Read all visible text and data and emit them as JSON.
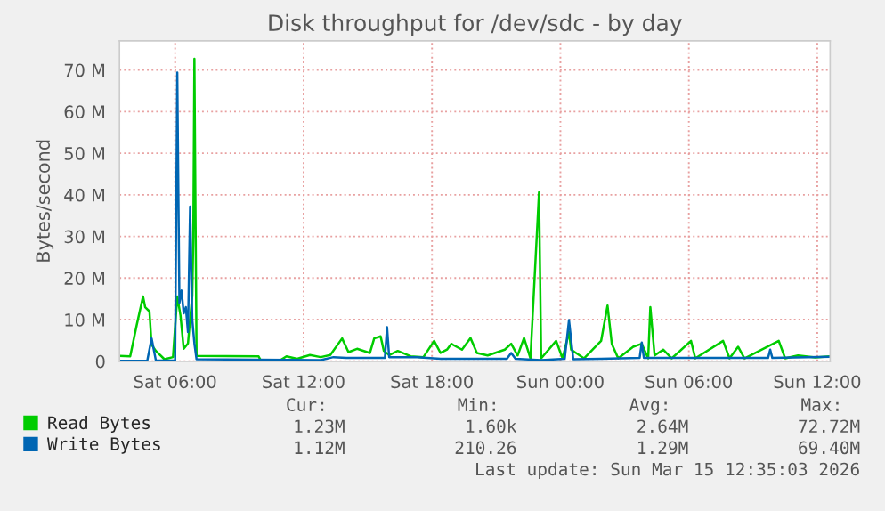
{
  "chart_data": {
    "type": "line",
    "title": "Disk throughput for /dev/sdc - by day",
    "ylabel": "Bytes/second",
    "xlim": [
      "2026-03-14T03:24",
      "2026-03-15T12:36"
    ],
    "xticks": [
      {
        "value": "2026-03-14T06:00",
        "label": "Sat 06:00"
      },
      {
        "value": "2026-03-14T12:00",
        "label": "Sat 12:00"
      },
      {
        "value": "2026-03-14T18:00",
        "label": "Sat 18:00"
      },
      {
        "value": "2026-03-15T00:00",
        "label": "Sun 00:00"
      },
      {
        "value": "2026-03-15T06:00",
        "label": "Sun 06:00"
      },
      {
        "value": "2026-03-15T12:00",
        "label": "Sun 12:00"
      }
    ],
    "ylim": [
      0,
      77
    ],
    "yticks": [
      {
        "value": 0,
        "label": "0"
      },
      {
        "value": 10,
        "label": "10 M"
      },
      {
        "value": 20,
        "label": "20 M"
      },
      {
        "value": 30,
        "label": "30 M"
      },
      {
        "value": 40,
        "label": "40 M"
      },
      {
        "value": 50,
        "label": "50 M"
      },
      {
        "value": 60,
        "label": "60 M"
      },
      {
        "value": 70,
        "label": "70 M"
      }
    ],
    "grid": true,
    "legend": "bottom",
    "marker": "none",
    "line_style": "solid",
    "series": [
      {
        "name": "Read Bytes",
        "color": "#00cc00",
        "x": [
          "2026-03-14T03:24",
          "2026-03-14T03:54",
          "2026-03-14T04:12",
          "2026-03-14T04:30",
          "2026-03-14T04:36",
          "2026-03-14T04:48",
          "2026-03-14T04:54",
          "2026-03-14T05:06",
          "2026-03-14T05:30",
          "2026-03-14T05:54",
          "2026-03-14T06:06",
          "2026-03-14T06:15",
          "2026-03-14T06:24",
          "2026-03-14T06:36",
          "2026-03-14T06:48",
          "2026-03-14T06:51",
          "2026-03-14T06:54",
          "2026-03-14T07:00",
          "2026-03-14T09:54",
          "2026-03-14T10:00",
          "2026-03-14T10:54",
          "2026-03-14T11:12",
          "2026-03-14T11:42",
          "2026-03-14T12:18",
          "2026-03-14T12:48",
          "2026-03-14T13:15",
          "2026-03-14T13:48",
          "2026-03-14T14:06",
          "2026-03-14T14:30",
          "2026-03-14T15:06",
          "2026-03-14T15:18",
          "2026-03-14T15:36",
          "2026-03-14T15:45",
          "2026-03-14T16:00",
          "2026-03-14T16:24",
          "2026-03-14T17:00",
          "2026-03-14T17:36",
          "2026-03-14T18:06",
          "2026-03-14T18:24",
          "2026-03-14T18:42",
          "2026-03-14T18:54",
          "2026-03-14T19:24",
          "2026-03-14T19:48",
          "2026-03-14T20:06",
          "2026-03-14T20:36",
          "2026-03-14T21:24",
          "2026-03-14T21:42",
          "2026-03-14T22:00",
          "2026-03-14T22:18",
          "2026-03-14T22:36",
          "2026-03-14T23:00",
          "2026-03-14T23:06",
          "2026-03-14T23:48",
          "2026-03-15T00:06",
          "2026-03-15T00:24",
          "2026-03-15T00:30",
          "2026-03-15T01:06",
          "2026-03-15T01:54",
          "2026-03-15T02:12",
          "2026-03-15T02:24",
          "2026-03-15T02:42",
          "2026-03-15T03:24",
          "2026-03-15T03:48",
          "2026-03-15T04:06",
          "2026-03-15T04:12",
          "2026-03-15T04:24",
          "2026-03-15T04:48",
          "2026-03-15T05:12",
          "2026-03-15T06:06",
          "2026-03-15T06:18",
          "2026-03-15T07:36",
          "2026-03-15T07:54",
          "2026-03-15T08:18",
          "2026-03-15T08:36",
          "2026-03-15T10:12",
          "2026-03-15T10:30",
          "2026-03-15T11:06",
          "2026-03-15T11:54",
          "2026-03-15T12:36"
        ],
        "values": [
          1.3,
          1.2,
          8.6,
          15.6,
          13,
          12,
          4,
          2.5,
          0.5,
          1,
          15.6,
          11,
          3,
          4.3,
          15.7,
          30,
          72.7,
          1.3,
          1.2,
          0.2,
          0.2,
          1.2,
          0.6,
          1.5,
          1.0,
          1.5,
          5.5,
          2.2,
          3,
          2,
          5.5,
          6,
          2.5,
          1.5,
          2.5,
          1.2,
          1.0,
          4.9,
          2,
          2.8,
          4.2,
          2.8,
          5.6,
          2,
          1.4,
          2.8,
          4.2,
          1.4,
          5.6,
          0.7,
          40.6,
          0.7,
          4.9,
          0.7,
          7,
          2.8,
          0.7,
          4.9,
          13.4,
          4.2,
          0.7,
          3.5,
          4.2,
          0.7,
          13,
          1.4,
          2.8,
          0.7,
          4.9,
          0.7,
          4.9,
          0.7,
          3.5,
          0.7,
          4.9,
          0.7,
          1.4,
          0.9,
          1.2
        ]
      },
      {
        "name": "Write Bytes",
        "color": "#0066b3",
        "x": [
          "2026-03-14T03:24",
          "2026-03-14T04:42",
          "2026-03-14T04:54",
          "2026-03-14T05:06",
          "2026-03-14T06:00",
          "2026-03-14T06:06",
          "2026-03-14T06:12",
          "2026-03-14T06:18",
          "2026-03-14T06:24",
          "2026-03-14T06:30",
          "2026-03-14T06:36",
          "2026-03-14T06:42",
          "2026-03-14T06:48",
          "2026-03-14T06:54",
          "2026-03-14T07:00",
          "2026-03-14T12:48",
          "2026-03-14T13:24",
          "2026-03-14T14:00",
          "2026-03-14T15:48",
          "2026-03-14T15:54",
          "2026-03-14T16:00",
          "2026-03-14T17:18",
          "2026-03-14T18:24",
          "2026-03-14T21:30",
          "2026-03-14T21:42",
          "2026-03-14T21:54",
          "2026-03-14T23:06",
          "2026-03-15T00:12",
          "2026-03-15T00:24",
          "2026-03-15T00:36",
          "2026-03-15T01:54",
          "2026-03-15T03:42",
          "2026-03-15T03:48",
          "2026-03-15T03:54",
          "2026-03-15T09:42",
          "2026-03-15T09:48",
          "2026-03-15T09:54",
          "2026-03-15T12:36"
        ],
        "values": [
          0.1,
          0.2,
          5.5,
          0.2,
          0.2,
          69.4,
          14,
          17,
          11.5,
          13,
          7,
          37.2,
          10,
          4.3,
          0.5,
          0.3,
          1.0,
          0.8,
          0.8,
          8.2,
          1,
          1.0,
          0.6,
          0.6,
          2,
          0.6,
          0.3,
          0.6,
          9.9,
          0.5,
          0.6,
          0.8,
          4.5,
          0.8,
          0.8,
          2.8,
          0.8,
          1.1
        ]
      }
    ],
    "annotations": [
      "Cur:",
      "Min:",
      "Avg:",
      "Max:",
      "1.23M",
      "1.60k",
      "2.64M",
      "72.72M",
      "1.12M",
      "210.26",
      "1.29M",
      "69.40M",
      "Last update: Sun Mar 15 12:35:03 2026"
    ]
  }
}
